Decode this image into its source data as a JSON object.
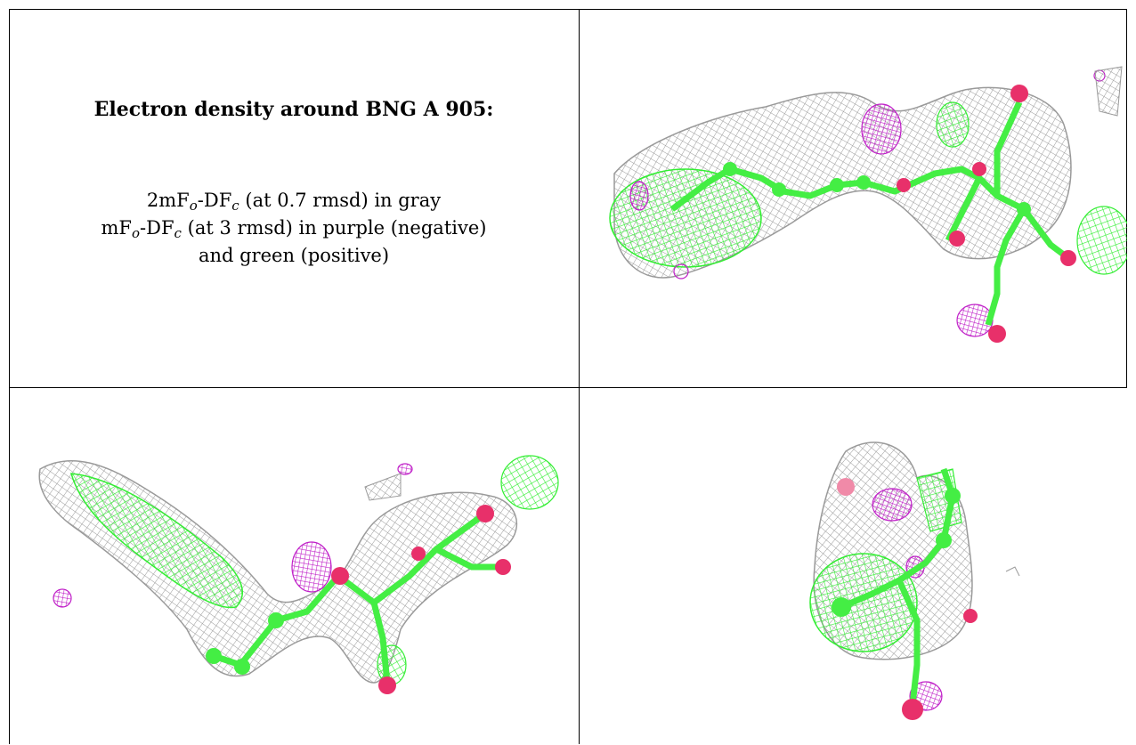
{
  "caption": {
    "heading": "Electron density around BNG A 905:",
    "line1": {
      "pre": "2mF",
      "sub1": "o",
      "mid": "-DF",
      "sub2": "c",
      "post": " (at 0.7 rmsd) in gray"
    },
    "line2": {
      "pre": "mF",
      "sub1": "o",
      "mid": "-DF",
      "sub2": "c",
      "post": " (at 3 rmsd) in purple (negative)"
    },
    "line3": "and green (positive)"
  },
  "colors": {
    "mesh_gray": "#9a9a9a",
    "mesh_purple": "#c020c8",
    "mesh_green": "#33ee33",
    "atom_carbon": "#44ee44",
    "atom_oxygen": "#e8306a"
  },
  "panels": [
    {
      "view": "top-right"
    },
    {
      "view": "bottom-left"
    },
    {
      "view": "bottom-right"
    }
  ]
}
